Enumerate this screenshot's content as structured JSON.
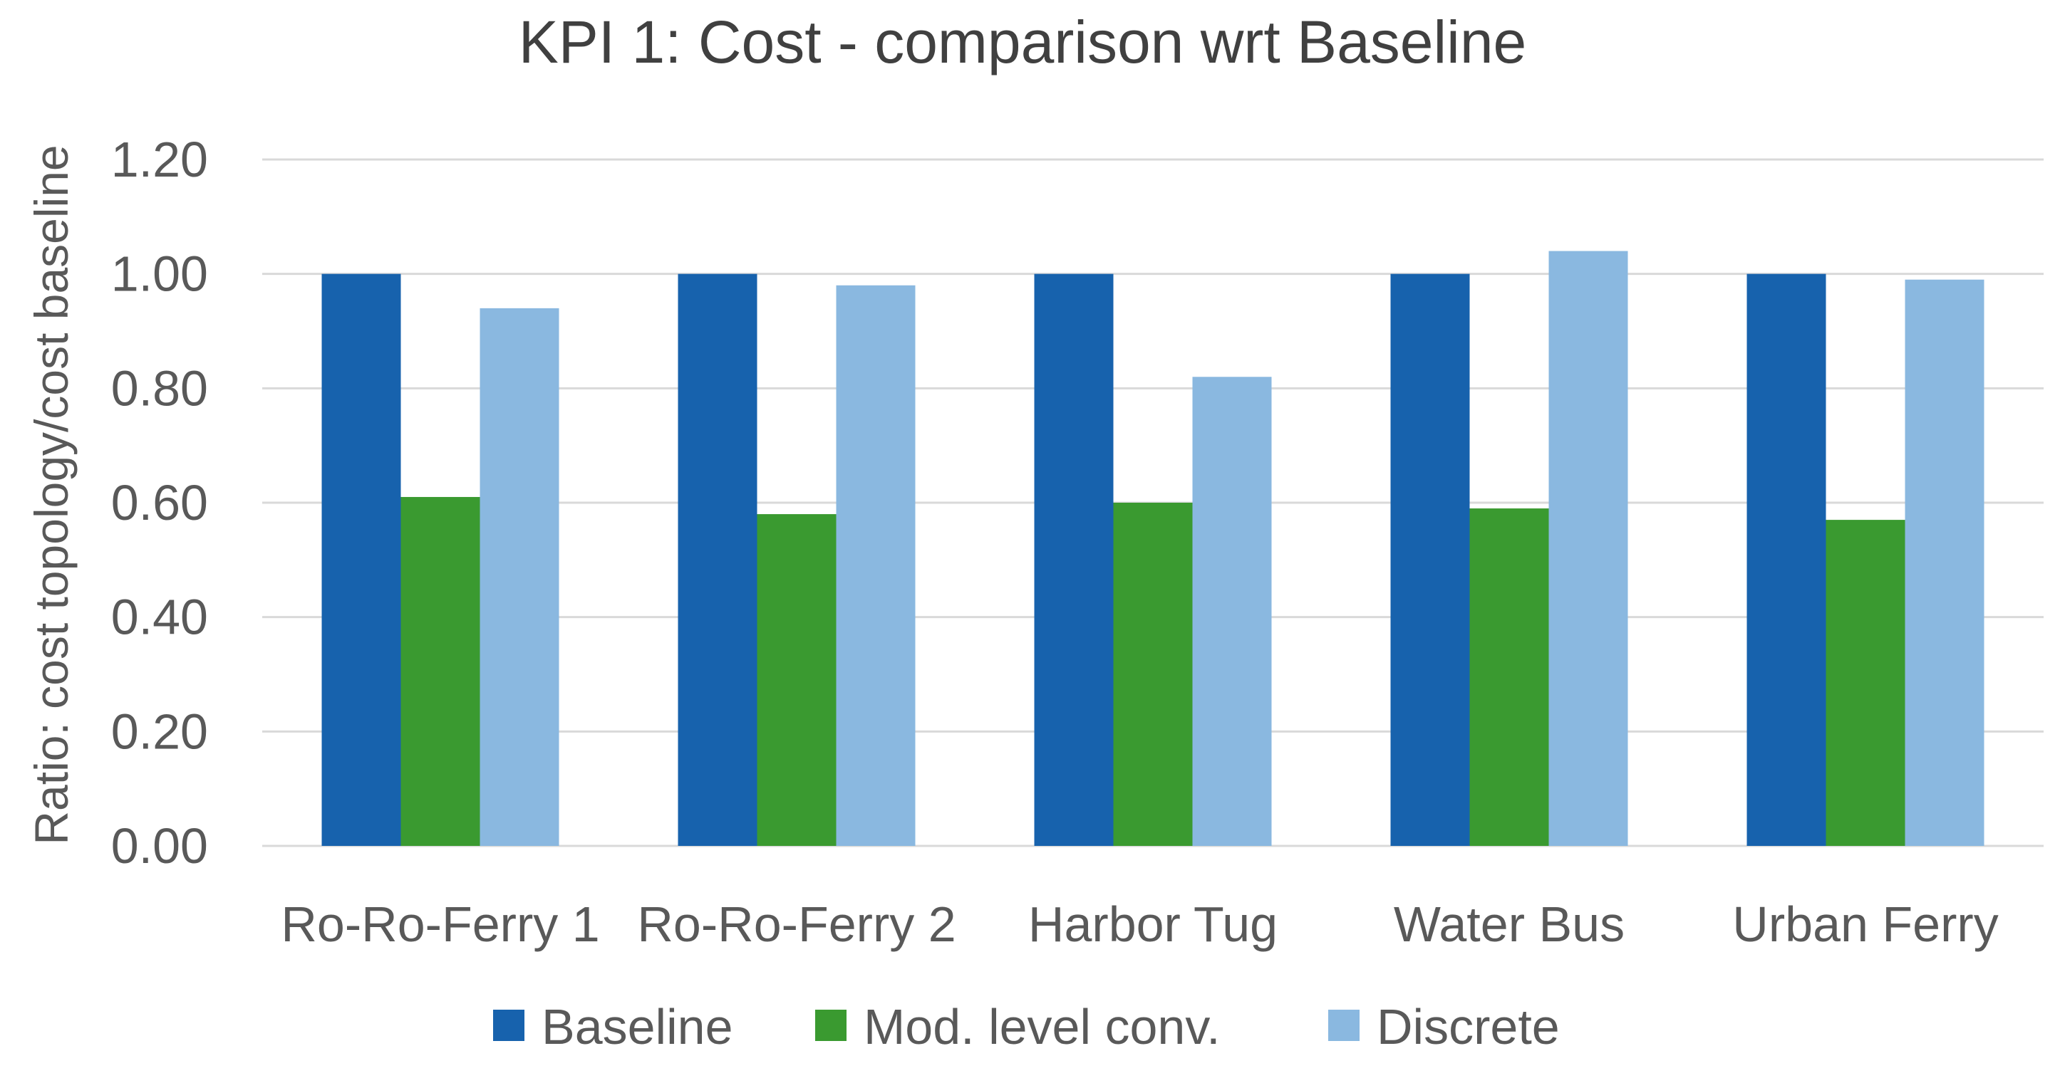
{
  "chart_data": {
    "type": "bar",
    "title": "KPI 1: Cost - comparison wrt Baseline",
    "xlabel": "",
    "ylabel": "Ratio: cost topology/cost baseline",
    "ylim": [
      0,
      1.2
    ],
    "yticks": [
      "0.00",
      "0.20",
      "0.40",
      "0.60",
      "0.80",
      "1.00",
      "1.20"
    ],
    "ytick_values": [
      0,
      0.2,
      0.4,
      0.6,
      0.8,
      1.0,
      1.2
    ],
    "grid": true,
    "legend_position": "bottom",
    "categories": [
      "Ro-Ro-Ferry 1",
      "Ro-Ro-Ferry 2",
      "Harbor Tug",
      "Water Bus",
      "Urban Ferry"
    ],
    "series": [
      {
        "name": "Baseline",
        "color": "#1762ad",
        "values": [
          1.0,
          1.0,
          1.0,
          1.0,
          1.0
        ]
      },
      {
        "name": "Mod. level conv.",
        "color": "#3a9a30",
        "values": [
          0.61,
          0.58,
          0.6,
          0.59,
          0.57
        ]
      },
      {
        "name": "Discrete",
        "color": "#8ab8e0",
        "values": [
          0.94,
          0.98,
          0.82,
          1.04,
          0.99
        ]
      }
    ]
  }
}
